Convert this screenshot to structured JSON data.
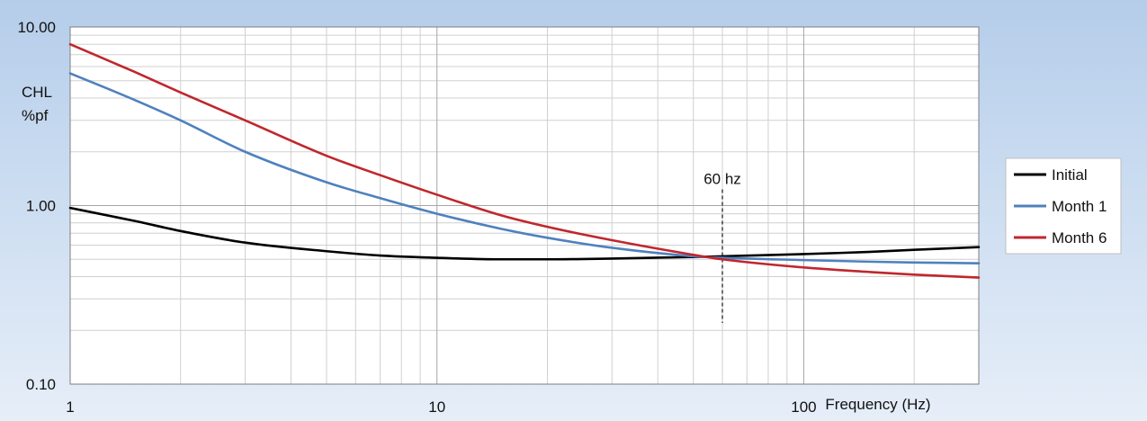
{
  "chart_data": {
    "type": "line",
    "title": "",
    "xlabel": "Frequency  (Hz)",
    "ylabel": [
      "CHL",
      "%pf"
    ],
    "x_scale": "log",
    "y_scale": "log",
    "xlim": [
      1,
      300
    ],
    "ylim": [
      0.1,
      10
    ],
    "x_ticks": [
      {
        "value": 1,
        "label": "1"
      },
      {
        "value": 10,
        "label": "10"
      },
      {
        "value": 100,
        "label": "100"
      }
    ],
    "y_ticks": [
      {
        "value": 10,
        "label": "10.00"
      },
      {
        "value": 1,
        "label": "1.00"
      },
      {
        "value": 0.1,
        "label": "0.10"
      }
    ],
    "grid": true,
    "legend_position": "right",
    "annotation": {
      "x": 60,
      "label": "60 hz",
      "y_range": [
        0.22,
        1.0
      ]
    },
    "series": [
      {
        "name": "Initial",
        "color": "#000000",
        "x": [
          1,
          1.5,
          2,
          3,
          5,
          7,
          10,
          15,
          20,
          30,
          50,
          60,
          100,
          150,
          200,
          300
        ],
        "y": [
          0.97,
          0.82,
          0.72,
          0.62,
          0.555,
          0.525,
          0.51,
          0.5,
          0.5,
          0.505,
          0.515,
          0.52,
          0.535,
          0.55,
          0.565,
          0.585
        ]
      },
      {
        "name": "Month 1",
        "color": "#4f81bd",
        "x": [
          1,
          1.5,
          2,
          3,
          5,
          7,
          10,
          15,
          20,
          30,
          50,
          60,
          100,
          150,
          200,
          300
        ],
        "y": [
          5.5,
          3.9,
          3.0,
          2.0,
          1.35,
          1.1,
          0.9,
          0.74,
          0.66,
          0.58,
          0.52,
          0.51,
          0.495,
          0.485,
          0.48,
          0.475
        ]
      },
      {
        "name": "Month 6",
        "color": "#c0272d",
        "x": [
          1,
          1.5,
          2,
          3,
          5,
          7,
          10,
          15,
          20,
          30,
          50,
          60,
          100,
          150,
          200,
          300
        ],
        "y": [
          8.0,
          5.6,
          4.3,
          3.0,
          1.9,
          1.48,
          1.15,
          0.88,
          0.76,
          0.64,
          0.53,
          0.5,
          0.45,
          0.425,
          0.41,
          0.395
        ]
      }
    ]
  }
}
